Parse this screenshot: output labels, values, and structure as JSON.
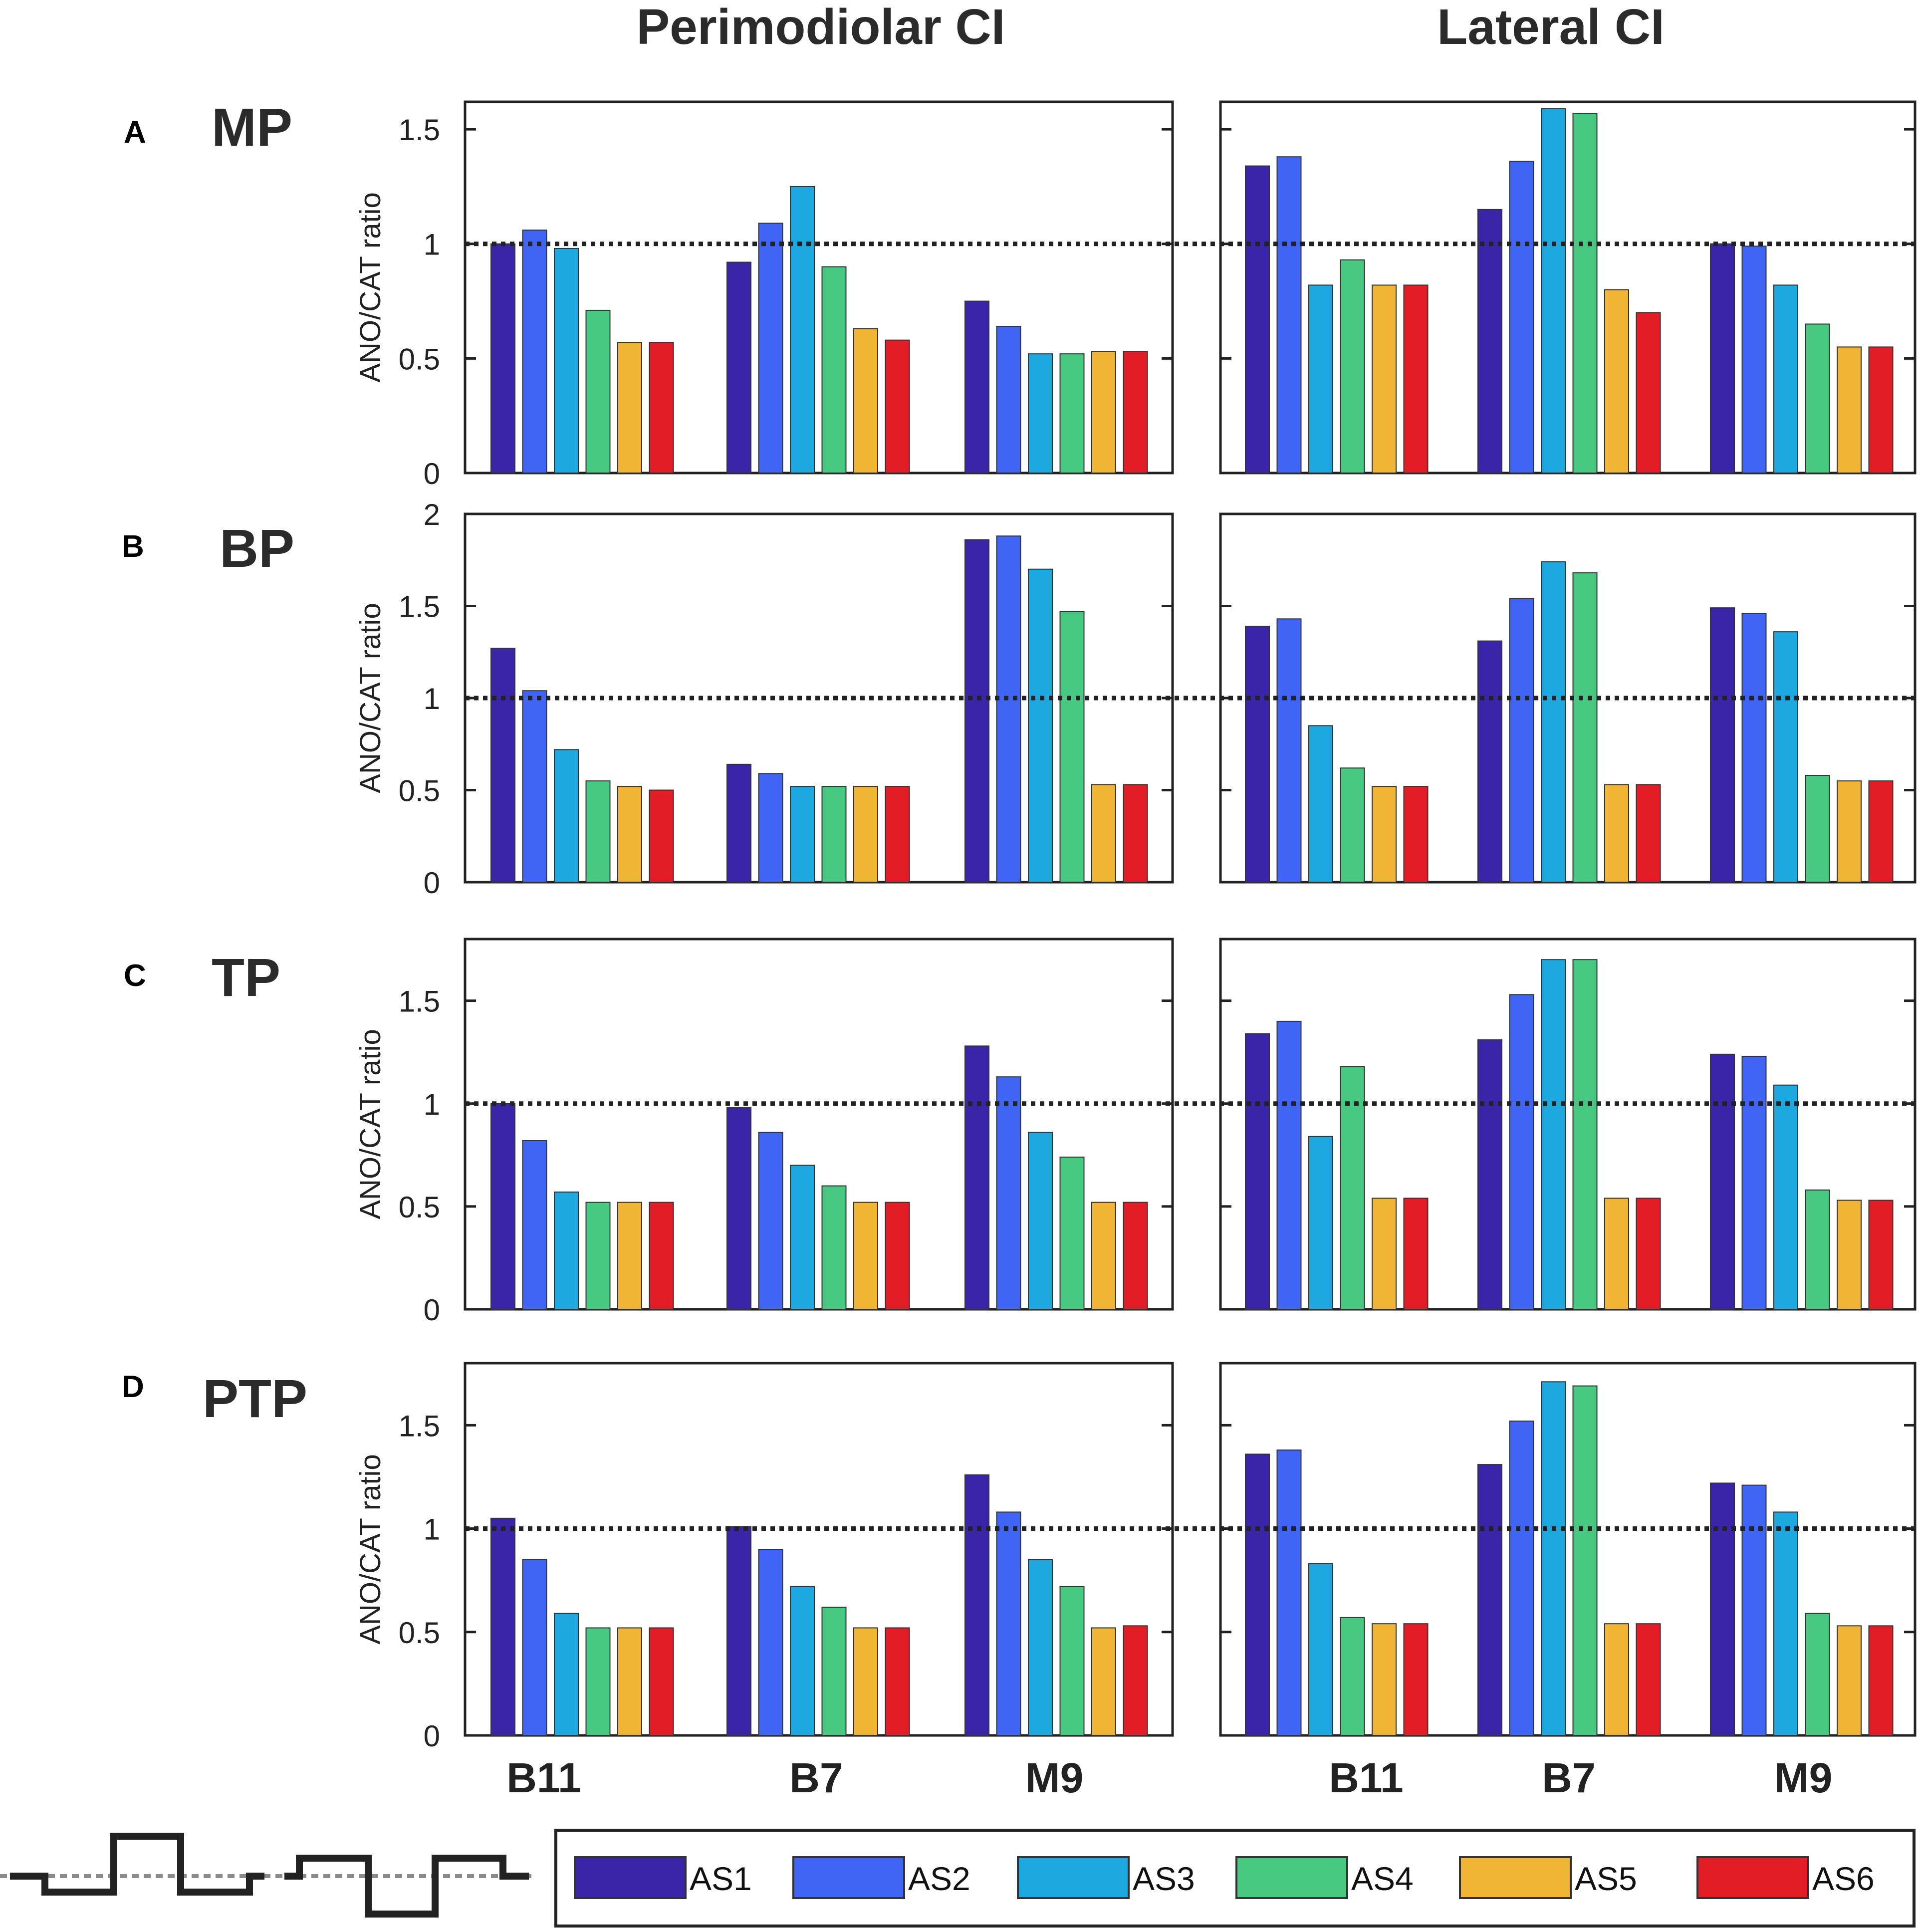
{
  "figure": {
    "column_titles": [
      "Perimodiolar CI",
      "Lateral CI"
    ],
    "row_letters": [
      "A",
      "B",
      "C",
      "D"
    ],
    "row_titles": [
      "MP",
      "BP",
      "TP",
      "PTP"
    ],
    "ylabel": "ANO/CAT ratio",
    "categories": [
      "B11",
      "B7",
      "M9"
    ],
    "reference_line": 1
  },
  "legend": {
    "items": [
      {
        "label": "AS1",
        "color": "#3a24a8"
      },
      {
        "label": "AS2",
        "color": "#4065f5"
      },
      {
        "label": "AS3",
        "color": "#1ea8e0"
      },
      {
        "label": "AS4",
        "color": "#48c982"
      },
      {
        "label": "AS5",
        "color": "#f0b535"
      },
      {
        "label": "AS6",
        "color": "#e21d26"
      }
    ]
  },
  "chart_data": [
    {
      "type": "bar",
      "row": "MP",
      "column": "Perimodiolar CI",
      "categories": [
        "B11",
        "B7",
        "M9"
      ],
      "ylim": [
        0,
        1.62
      ],
      "yticks": [
        0,
        0.5,
        1,
        1.5
      ],
      "ytick_labels": [
        "0",
        "0.5",
        "1",
        "1.5"
      ],
      "series": [
        {
          "name": "AS1",
          "values": [
            1.0,
            0.92,
            0.75
          ]
        },
        {
          "name": "AS2",
          "values": [
            1.06,
            1.09,
            0.64
          ]
        },
        {
          "name": "AS3",
          "values": [
            0.98,
            1.25,
            0.52
          ]
        },
        {
          "name": "AS4",
          "values": [
            0.71,
            0.9,
            0.52
          ]
        },
        {
          "name": "AS5",
          "values": [
            0.57,
            0.63,
            0.53
          ]
        },
        {
          "name": "AS6",
          "values": [
            0.57,
            0.58,
            0.53
          ]
        }
      ]
    },
    {
      "type": "bar",
      "row": "MP",
      "column": "Lateral CI",
      "categories": [
        "B11",
        "B7",
        "M9"
      ],
      "ylim": [
        0,
        1.62
      ],
      "yticks": [
        0,
        0.5,
        1,
        1.5
      ],
      "ytick_labels": [
        "0",
        "0.5",
        "1",
        "1.5"
      ],
      "series": [
        {
          "name": "AS1",
          "values": [
            1.34,
            1.15,
            1.0
          ]
        },
        {
          "name": "AS2",
          "values": [
            1.38,
            1.36,
            0.99
          ]
        },
        {
          "name": "AS3",
          "values": [
            0.82,
            1.59,
            0.82
          ]
        },
        {
          "name": "AS4",
          "values": [
            0.93,
            1.57,
            0.65
          ]
        },
        {
          "name": "AS5",
          "values": [
            0.82,
            0.8,
            0.55
          ]
        },
        {
          "name": "AS6",
          "values": [
            0.82,
            0.7,
            0.55
          ]
        }
      ]
    },
    {
      "type": "bar",
      "row": "BP",
      "column": "Perimodiolar CI",
      "categories": [
        "B11",
        "B7",
        "M9"
      ],
      "ylim": [
        0,
        2
      ],
      "yticks": [
        0,
        0.5,
        1,
        1.5,
        2
      ],
      "ytick_labels": [
        "0",
        "0.5",
        "1",
        "1.5",
        "2"
      ],
      "series": [
        {
          "name": "AS1",
          "values": [
            1.27,
            0.64,
            1.86
          ]
        },
        {
          "name": "AS2",
          "values": [
            1.04,
            0.59,
            1.88
          ]
        },
        {
          "name": "AS3",
          "values": [
            0.72,
            0.52,
            1.7
          ]
        },
        {
          "name": "AS4",
          "values": [
            0.55,
            0.52,
            1.47
          ]
        },
        {
          "name": "AS5",
          "values": [
            0.52,
            0.52,
            0.53
          ]
        },
        {
          "name": "AS6",
          "values": [
            0.5,
            0.52,
            0.53
          ]
        }
      ]
    },
    {
      "type": "bar",
      "row": "BP",
      "column": "Lateral CI",
      "categories": [
        "B11",
        "B7",
        "M9"
      ],
      "ylim": [
        0,
        2
      ],
      "yticks": [
        0,
        0.5,
        1,
        1.5,
        2
      ],
      "ytick_labels": [
        "0",
        "0.5",
        "1",
        "1.5",
        "2"
      ],
      "series": [
        {
          "name": "AS1",
          "values": [
            1.39,
            1.31,
            1.49
          ]
        },
        {
          "name": "AS2",
          "values": [
            1.43,
            1.54,
            1.46
          ]
        },
        {
          "name": "AS3",
          "values": [
            0.85,
            1.74,
            1.36
          ]
        },
        {
          "name": "AS4",
          "values": [
            0.62,
            1.68,
            0.58
          ]
        },
        {
          "name": "AS5",
          "values": [
            0.52,
            0.53,
            0.55
          ]
        },
        {
          "name": "AS6",
          "values": [
            0.52,
            0.53,
            0.55
          ]
        }
      ]
    },
    {
      "type": "bar",
      "row": "TP",
      "column": "Perimodiolar CI",
      "categories": [
        "B11",
        "B7",
        "M9"
      ],
      "ylim": [
        0,
        1.8
      ],
      "yticks": [
        0,
        0.5,
        1,
        1.5
      ],
      "ytick_labels": [
        "0",
        "0.5",
        "1",
        "1.5"
      ],
      "series": [
        {
          "name": "AS1",
          "values": [
            1.0,
            0.98,
            1.28
          ]
        },
        {
          "name": "AS2",
          "values": [
            0.82,
            0.86,
            1.13
          ]
        },
        {
          "name": "AS3",
          "values": [
            0.57,
            0.7,
            0.86
          ]
        },
        {
          "name": "AS4",
          "values": [
            0.52,
            0.6,
            0.74
          ]
        },
        {
          "name": "AS5",
          "values": [
            0.52,
            0.52,
            0.52
          ]
        },
        {
          "name": "AS6",
          "values": [
            0.52,
            0.52,
            0.52
          ]
        }
      ]
    },
    {
      "type": "bar",
      "row": "TP",
      "column": "Lateral CI",
      "categories": [
        "B11",
        "B7",
        "M9"
      ],
      "ylim": [
        0,
        1.8
      ],
      "yticks": [
        0,
        0.5,
        1,
        1.5
      ],
      "ytick_labels": [
        "0",
        "0.5",
        "1",
        "1.5"
      ],
      "series": [
        {
          "name": "AS1",
          "values": [
            1.34,
            1.31,
            1.24
          ]
        },
        {
          "name": "AS2",
          "values": [
            1.4,
            1.53,
            1.23
          ]
        },
        {
          "name": "AS3",
          "values": [
            0.84,
            1.7,
            1.09
          ]
        },
        {
          "name": "AS4",
          "values": [
            1.18,
            1.7,
            0.58
          ]
        },
        {
          "name": "AS5",
          "values": [
            0.54,
            0.54,
            0.53
          ]
        },
        {
          "name": "AS6",
          "values": [
            0.54,
            0.54,
            0.53
          ]
        }
      ]
    },
    {
      "type": "bar",
      "row": "PTP",
      "column": "Perimodiolar CI",
      "categories": [
        "B11",
        "B7",
        "M9"
      ],
      "ylim": [
        0,
        1.8
      ],
      "yticks": [
        0,
        0.5,
        1,
        1.5
      ],
      "ytick_labels": [
        "0",
        "0.5",
        "1",
        "1.5"
      ],
      "series": [
        {
          "name": "AS1",
          "values": [
            1.05,
            1.01,
            1.26
          ]
        },
        {
          "name": "AS2",
          "values": [
            0.85,
            0.9,
            1.08
          ]
        },
        {
          "name": "AS3",
          "values": [
            0.59,
            0.72,
            0.85
          ]
        },
        {
          "name": "AS4",
          "values": [
            0.52,
            0.62,
            0.72
          ]
        },
        {
          "name": "AS5",
          "values": [
            0.52,
            0.52,
            0.52
          ]
        },
        {
          "name": "AS6",
          "values": [
            0.52,
            0.52,
            0.53
          ]
        }
      ]
    },
    {
      "type": "bar",
      "row": "PTP",
      "column": "Lateral CI",
      "categories": [
        "B11",
        "B7",
        "M9"
      ],
      "ylim": [
        0,
        1.8
      ],
      "yticks": [
        0,
        0.5,
        1,
        1.5
      ],
      "ytick_labels": [
        "0",
        "0.5",
        "1",
        "1.5"
      ],
      "series": [
        {
          "name": "AS1",
          "values": [
            1.36,
            1.31,
            1.22
          ]
        },
        {
          "name": "AS2",
          "values": [
            1.38,
            1.52,
            1.21
          ]
        },
        {
          "name": "AS3",
          "values": [
            0.83,
            1.71,
            1.08
          ]
        },
        {
          "name": "AS4",
          "values": [
            0.57,
            1.69,
            0.59
          ]
        },
        {
          "name": "AS5",
          "values": [
            0.54,
            0.54,
            0.53
          ]
        },
        {
          "name": "AS6",
          "values": [
            0.54,
            0.54,
            0.53
          ]
        }
      ]
    }
  ]
}
